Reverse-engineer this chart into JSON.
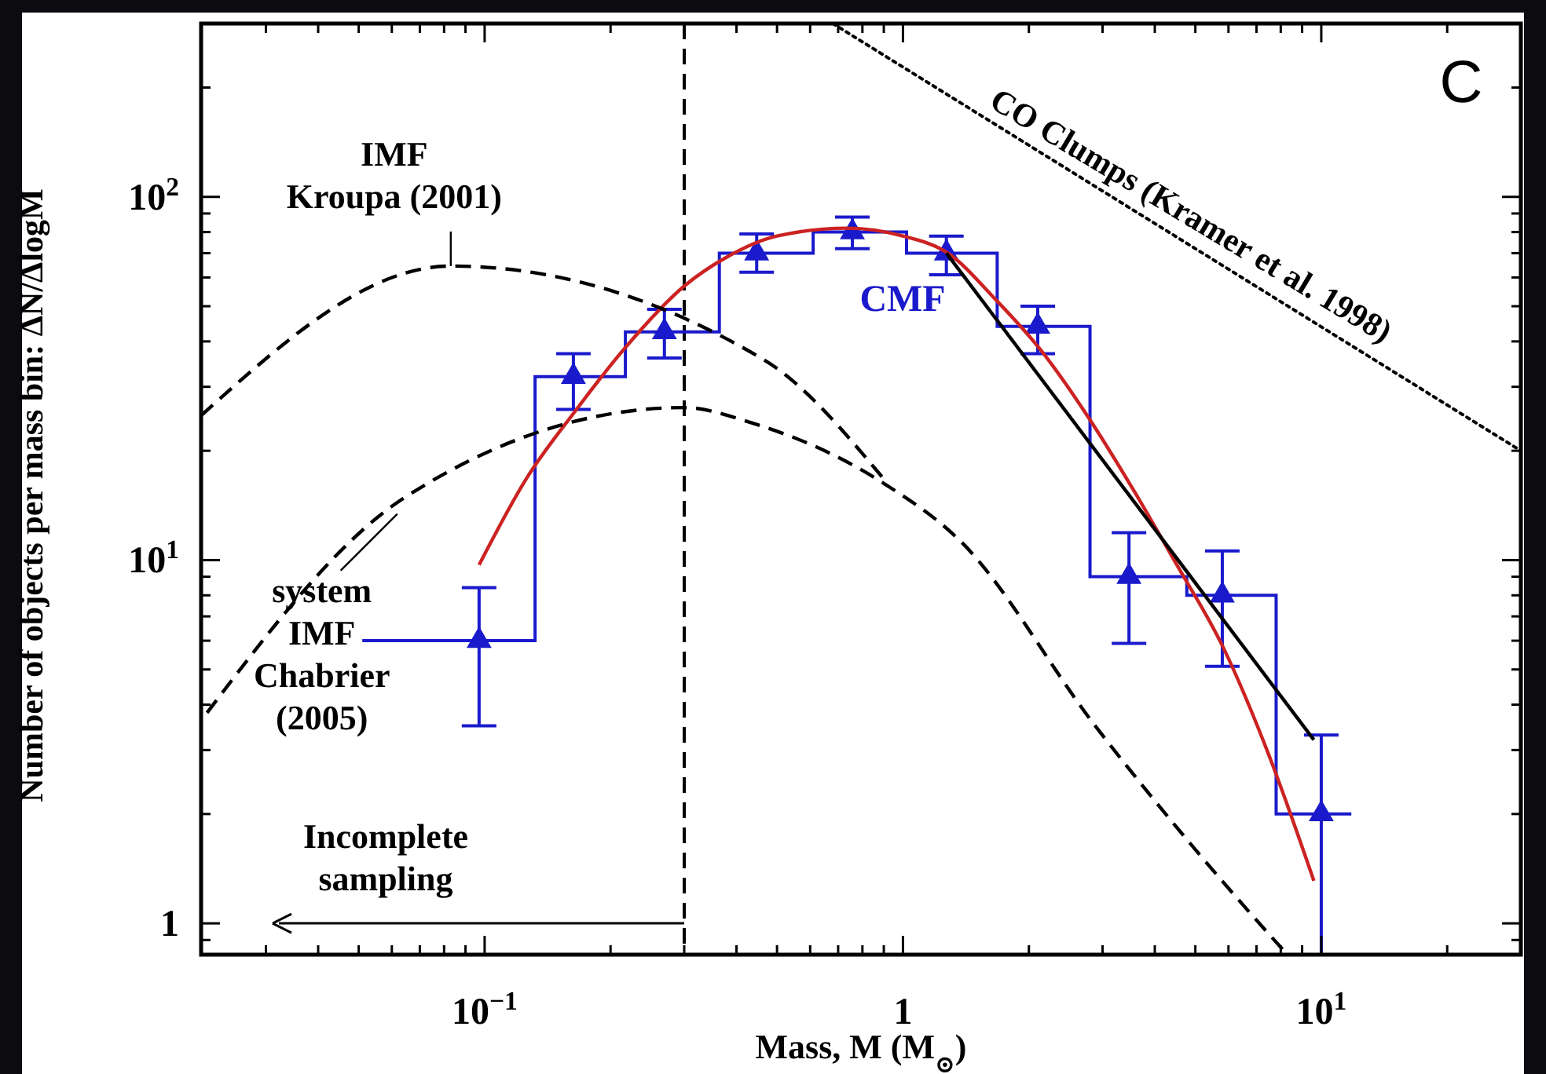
{
  "chart_data": {
    "type": "scatter",
    "xlabel": "Mass, M (M$_{⊙}$)",
    "ylabel": "Number of objects per mass bin: ΔN/ΔlogM",
    "log": "xy",
    "grid": false,
    "xlim": [
      0.021,
      30
    ],
    "ylim": [
      0.82,
      300
    ],
    "xticks": [
      {
        "value": 0.03,
        "label": null
      },
      {
        "value": 0.04,
        "label": null
      },
      {
        "value": 0.05,
        "label": null
      },
      {
        "value": 0.06,
        "label": null
      },
      {
        "value": 0.07,
        "label": null
      },
      {
        "value": 0.08,
        "label": null
      },
      {
        "value": 0.09,
        "label": null
      },
      {
        "value": 0.1,
        "label": "10$^{−1}$"
      },
      {
        "value": 0.2,
        "label": null
      },
      {
        "value": 0.3,
        "label": null
      },
      {
        "value": 0.4,
        "label": null
      },
      {
        "value": 0.5,
        "label": null
      },
      {
        "value": 0.6,
        "label": null
      },
      {
        "value": 0.7,
        "label": null
      },
      {
        "value": 0.8,
        "label": null
      },
      {
        "value": 0.9,
        "label": null
      },
      1,
      {
        "value": 2,
        "label": null
      },
      {
        "value": 3,
        "label": null
      },
      {
        "value": 4,
        "label": null
      },
      {
        "value": 5,
        "label": null
      },
      {
        "value": 6,
        "label": null
      },
      {
        "value": 7,
        "label": null
      },
      {
        "value": 8,
        "label": null
      },
      {
        "value": 9,
        "label": null
      },
      {
        "value": 10,
        "label": "10$^{1}$"
      },
      {
        "value": 20,
        "label": null
      }
    ],
    "yticks": [
      {
        "value": 0.9,
        "label": null
      },
      1,
      {
        "value": 2,
        "label": null
      },
      {
        "value": 3,
        "label": null
      },
      {
        "value": 4,
        "label": null
      },
      {
        "value": 5,
        "label": null
      },
      {
        "value": 6,
        "label": null
      },
      {
        "value": 7,
        "label": null
      },
      {
        "value": 8,
        "label": null
      },
      {
        "value": 9,
        "label": null
      },
      {
        "value": 10,
        "label": "10$^{1}$"
      },
      {
        "value": 20,
        "label": null
      },
      {
        "value": 30,
        "label": null
      },
      {
        "value": 40,
        "label": null
      },
      {
        "value": 50,
        "label": null
      },
      {
        "value": 60,
        "label": null
      },
      {
        "value": 70,
        "label": null
      },
      {
        "value": 80,
        "label": null
      },
      {
        "value": 90,
        "label": null
      },
      {
        "value": 100,
        "label": "10$^{2}$"
      },
      {
        "value": 200,
        "label": null
      }
    ],
    "ref_lines": [
      {
        "axis": "x",
        "value": 0.3,
        "line_style": "dashed",
        "color": "#000000"
      }
    ],
    "annotations": [
      {
        "text": "Incomplete\nsampling",
        "x": 0.3,
        "y": 1
      },
      "C",
      {
        "text": "IMF\nKroupa (2001)",
        "x": 0.083,
        "y": 64.5
      },
      {
        "text": "system\nIMF\nChabrier\n(2005)",
        "x": 0.064,
        "y": 14.8
      },
      {
        "text": "CO Clumps (Kramer et al. 1998)",
        "x": 4.5,
        "y": 77.4
      }
    ],
    "series": [
      {
        "type": "histogram",
        "color": "#1a1acc",
        "bins": [
          0.051,
          0.132,
          0.217,
          0.364,
          0.61,
          1.02,
          1.68,
          2.8,
          4.77,
          7.8,
          11.8
        ],
        "values": [
          6,
          32,
          42.5,
          70,
          80,
          70,
          44,
          9,
          8,
          2
        ]
      },
      {
        "type": "scatter",
        "name": "CMF",
        "color": "#1a1acc",
        "marker": "triangle",
        "x": [
          0.097,
          0.163,
          0.269,
          0.447,
          0.757,
          1.27,
          2.1,
          3.47,
          5.8,
          10
        ],
        "values": [
          6,
          32,
          42.5,
          70,
          80,
          70,
          44,
          9,
          8,
          2
        ],
        "errors": [
          [
            3.5,
            8.4
          ],
          [
            26,
            37
          ],
          [
            36,
            49
          ],
          [
            62,
            79
          ],
          [
            72,
            88
          ],
          [
            61,
            78
          ],
          [
            37,
            50
          ],
          [
            5.9,
            11.9
          ],
          [
            5.1,
            10.6
          ],
          [
            0.82,
            3.3
          ]
        ]
      },
      {
        "type": "line",
        "color": "#cc2222",
        "line_style": "solid",
        "x": [
          0.097,
          0.126,
          0.165,
          0.215,
          0.301,
          0.377,
          0.5,
          0.737,
          1.0,
          1.28,
          1.67,
          2.13,
          2.77,
          3.58,
          4.47,
          5.85,
          7.5,
          9.6
        ],
        "values": [
          9.7,
          16.8,
          25.8,
          38,
          57,
          68,
          78,
          82,
          78,
          70,
          52,
          38,
          24.8,
          15.4,
          9.9,
          5.7,
          2.9,
          1.31
        ]
      },
      {
        "type": "line",
        "color": "#000000",
        "line_style": "solid",
        "x": [
          1.27,
          9.6
        ],
        "values": [
          70,
          3.2
        ]
      },
      {
        "type": "line",
        "color": "#000000",
        "line_style": "dashed",
        "x": [
          0.021,
          0.083,
          0.467,
          0.897
        ],
        "values": [
          25,
          64.5,
          35.5,
          16.8
        ]
      },
      {
        "type": "line",
        "color": "#000000",
        "line_style": "dashed",
        "x": [
          0.0217,
          0.064,
          0.3,
          0.438,
          0.897,
          1.37,
          2.88,
          6.07,
          8.3
        ],
        "values": [
          3.8,
          14.8,
          26.3,
          23.8,
          16.3,
          11.3,
          3.5,
          1.23,
          0.82
        ]
      },
      {
        "type": "line",
        "color": "#000000",
        "line_style": "dotted",
        "x": [
          0.68,
          30
        ],
        "values": [
          300,
          20
        ]
      }
    ]
  }
}
